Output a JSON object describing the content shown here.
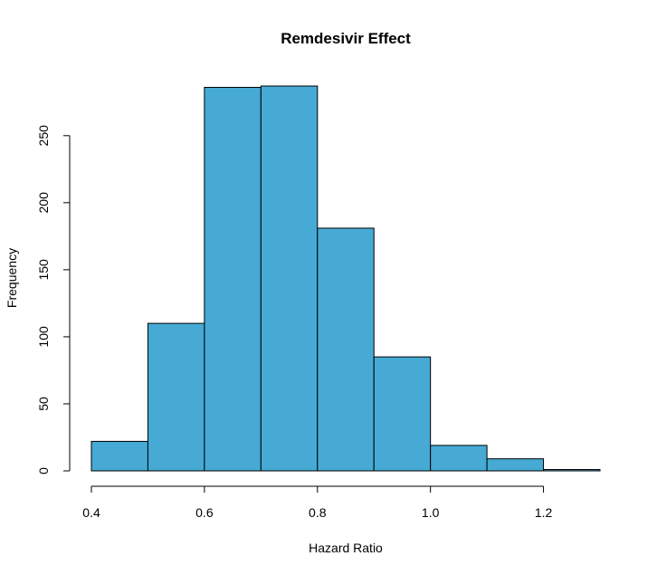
{
  "chart_data": {
    "type": "bar",
    "title": "Remdesivir Effect",
    "xlabel": "Hazard Ratio",
    "ylabel": "Frequency",
    "bin_edges": [
      0.4,
      0.5,
      0.6,
      0.7,
      0.8,
      0.9,
      1.0,
      1.1,
      1.2,
      1.3
    ],
    "values": [
      22,
      110,
      286,
      287,
      181,
      85,
      19,
      9,
      1
    ],
    "xlim": [
      0.4,
      1.3
    ],
    "ylim": [
      0,
      287
    ],
    "x_ticks": [
      "0.4",
      "0.6",
      "0.8",
      "1.0",
      "1.2"
    ],
    "y_ticks": [
      "0",
      "50",
      "100",
      "150",
      "200",
      "250"
    ],
    "bar_color": "#46AAD5",
    "grid": false,
    "legend": "none"
  }
}
